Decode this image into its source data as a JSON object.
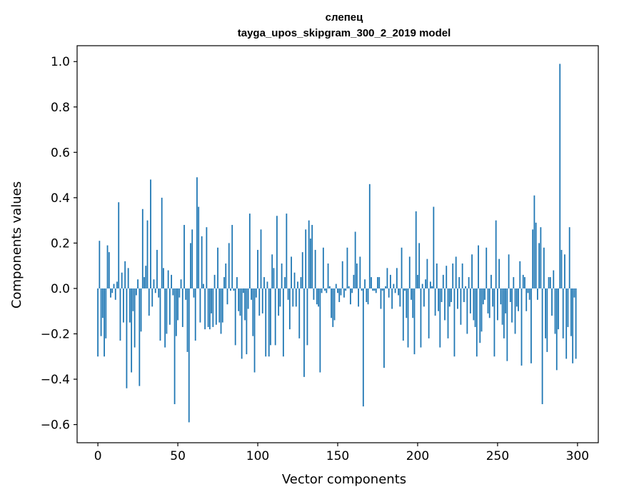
{
  "chart_data": {
    "type": "bar",
    "title": "слепец",
    "subtitle": "tayga_upos_skipgram_300_2_2019 model",
    "xlabel": "Vector components",
    "ylabel": "Components values",
    "xlim": [
      -13,
      313
    ],
    "ylim": [
      -0.68,
      1.07
    ],
    "xticks": [
      0,
      50,
      100,
      150,
      200,
      250,
      300
    ],
    "xtick_labels": [
      "0",
      "50",
      "100",
      "150",
      "200",
      "250",
      "300"
    ],
    "yticks": [
      -0.6,
      -0.4,
      -0.2,
      0.0,
      0.2,
      0.4,
      0.6,
      0.8,
      1.0
    ],
    "ytick_labels": [
      "−0.6",
      "−0.4",
      "−0.2",
      "0.0",
      "0.2",
      "0.4",
      "0.6",
      "0.8",
      "1.0"
    ],
    "grid": false,
    "bar_color": "#1f77b4",
    "x": [
      0,
      1,
      2,
      3,
      4,
      5,
      6,
      7,
      8,
      9,
      10,
      11,
      12,
      13,
      14,
      15,
      16,
      17,
      18,
      19,
      20,
      21,
      22,
      23,
      24,
      25,
      26,
      27,
      28,
      29,
      30,
      31,
      32,
      33,
      34,
      35,
      36,
      37,
      38,
      39,
      40,
      41,
      42,
      43,
      44,
      45,
      46,
      47,
      48,
      49,
      50,
      51,
      52,
      53,
      54,
      55,
      56,
      57,
      58,
      59,
      60,
      61,
      62,
      63,
      64,
      65,
      66,
      67,
      68,
      69,
      70,
      71,
      72,
      73,
      74,
      75,
      76,
      77,
      78,
      79,
      80,
      81,
      82,
      83,
      84,
      85,
      86,
      87,
      88,
      89,
      90,
      91,
      92,
      93,
      94,
      95,
      96,
      97,
      98,
      99,
      100,
      101,
      102,
      103,
      104,
      105,
      106,
      107,
      108,
      109,
      110,
      111,
      112,
      113,
      114,
      115,
      116,
      117,
      118,
      119,
      120,
      121,
      122,
      123,
      124,
      125,
      126,
      127,
      128,
      129,
      130,
      131,
      132,
      133,
      134,
      135,
      136,
      137,
      138,
      139,
      140,
      141,
      142,
      143,
      144,
      145,
      146,
      147,
      148,
      149,
      150,
      151,
      152,
      153,
      154,
      155,
      156,
      157,
      158,
      159,
      160,
      161,
      162,
      163,
      164,
      165,
      166,
      167,
      168,
      169,
      170,
      171,
      172,
      173,
      174,
      175,
      176,
      177,
      178,
      179,
      180,
      181,
      182,
      183,
      184,
      185,
      186,
      187,
      188,
      189,
      190,
      191,
      192,
      193,
      194,
      195,
      196,
      197,
      198,
      199,
      200,
      201,
      202,
      203,
      204,
      205,
      206,
      207,
      208,
      209,
      210,
      211,
      212,
      213,
      214,
      215,
      216,
      217,
      218,
      219,
      220,
      221,
      222,
      223,
      224,
      225,
      226,
      227,
      228,
      229,
      230,
      231,
      232,
      233,
      234,
      235,
      236,
      237,
      238,
      239,
      240,
      241,
      242,
      243,
      244,
      245,
      246,
      247,
      248,
      249,
      250,
      251,
      252,
      253,
      254,
      255,
      256,
      257,
      258,
      259,
      260,
      261,
      262,
      263,
      264,
      265,
      266,
      267,
      268,
      269,
      270,
      271,
      272,
      273,
      274,
      275,
      276,
      277,
      278,
      279,
      280,
      281,
      282,
      283,
      284,
      285,
      286,
      287,
      288,
      289,
      290,
      291,
      292,
      293,
      294,
      295,
      296,
      297,
      298,
      299
    ],
    "values": [
      -0.3,
      0.21,
      -0.21,
      -0.13,
      -0.3,
      -0.22,
      0.19,
      0.16,
      -0.04,
      -0.02,
      0.02,
      -0.05,
      0.03,
      0.38,
      -0.23,
      0.07,
      -0.15,
      0.12,
      -0.44,
      0.09,
      -0.15,
      -0.37,
      -0.1,
      -0.26,
      -0.03,
      0.04,
      -0.43,
      -0.19,
      0.35,
      0.05,
      0.1,
      0.3,
      -0.12,
      0.48,
      -0.08,
      0.04,
      -0.02,
      0.17,
      -0.04,
      -0.23,
      0.4,
      0.09,
      -0.26,
      -0.2,
      0.08,
      -0.16,
      0.06,
      -0.03,
      -0.51,
      -0.21,
      -0.14,
      -0.04,
      0.04,
      -0.17,
      0.28,
      -0.05,
      -0.28,
      -0.59,
      0.2,
      0.26,
      -0.04,
      -0.23,
      0.49,
      0.36,
      -0.15,
      0.23,
      0.02,
      -0.18,
      0.27,
      -0.17,
      -0.18,
      -0.11,
      -0.17,
      0.06,
      -0.16,
      0.18,
      -0.15,
      -0.2,
      -0.15,
      0.05,
      0.11,
      -0.07,
      0.2,
      -0.01,
      0.28,
      -0.01,
      -0.25,
      0.05,
      -0.1,
      -0.12,
      -0.31,
      -0.02,
      -0.14,
      -0.29,
      -0.09,
      0.33,
      -0.05,
      -0.21,
      -0.37,
      -0.04,
      0.17,
      -0.12,
      0.26,
      -0.11,
      0.05,
      -0.3,
      0.03,
      -0.3,
      -0.25,
      0.15,
      0.09,
      -0.25,
      0.32,
      -0.12,
      -0.08,
      0.11,
      -0.3,
      0.05,
      0.33,
      -0.05,
      -0.18,
      0.14,
      -0.08,
      0.07,
      -0.08,
      0.03,
      -0.22,
      0.05,
      0.16,
      -0.39,
      0.26,
      -0.25,
      0.3,
      0.22,
      0.28,
      -0.05,
      0.17,
      -0.07,
      -0.08,
      -0.37,
      -0.02,
      0.18,
      -0.01,
      -0.02,
      0.11,
      0.01,
      -0.13,
      -0.17,
      -0.14,
      0.02,
      -0.02,
      -0.06,
      -0.03,
      0.12,
      -0.04,
      -0.01,
      0.18,
      0.01,
      -0.07,
      -0.02,
      0.06,
      0.25,
      0.11,
      -0.08,
      0.14,
      -0.01,
      -0.52,
      0.04,
      -0.06,
      -0.07,
      0.46,
      0.05,
      -0.01,
      -0.01,
      -0.02,
      0.05,
      0.05,
      -0.09,
      -0.01,
      -0.35,
      0.01,
      0.09,
      -0.04,
      0.06,
      -0.09,
      0.02,
      -0.02,
      0.09,
      -0.03,
      -0.08,
      0.18,
      -0.23,
      -0.01,
      -0.13,
      -0.26,
      0.14,
      -0.05,
      -0.13,
      -0.29,
      0.34,
      0.06,
      0.2,
      -0.26,
      0.02,
      -0.08,
      0.04,
      0.13,
      -0.22,
      0.03,
      0.01,
      0.36,
      -0.12,
      0.11,
      -0.1,
      -0.26,
      -0.06,
      0.06,
      -0.14,
      0.1,
      -0.22,
      -0.08,
      -0.06,
      0.11,
      -0.3,
      0.14,
      -0.09,
      0.05,
      -0.16,
      0.11,
      -0.06,
      0.01,
      -0.2,
      0.05,
      -0.11,
      0.15,
      -0.14,
      -0.17,
      -0.3,
      0.19,
      -0.24,
      -0.19,
      -0.07,
      -0.05,
      0.18,
      -0.11,
      -0.13,
      0.06,
      -0.08,
      -0.3,
      0.3,
      -0.14,
      0.13,
      -0.07,
      -0.16,
      -0.22,
      -0.11,
      -0.32,
      0.15,
      -0.06,
      -0.15,
      0.05,
      -0.2,
      -0.08,
      -0.1,
      0.12,
      -0.34,
      0.06,
      0.05,
      -0.1,
      -0.02,
      -0.05,
      -0.33,
      0.26,
      0.41,
      0.29,
      -0.05,
      0.2,
      0.27,
      -0.51,
      0.18,
      -0.22,
      -0.28,
      0.05,
      0.05,
      -0.12,
      0.08,
      -0.2,
      -0.36,
      -0.18,
      0.99,
      0.17,
      -0.22,
      0.15,
      -0.31,
      -0.17,
      0.27,
      -0.21,
      -0.33,
      -0.04,
      -0.31
    ]
  }
}
